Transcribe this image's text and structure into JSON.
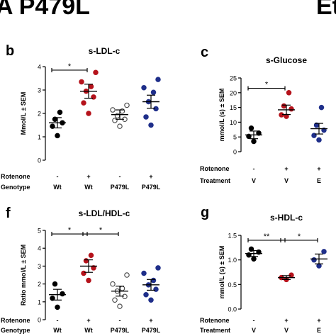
{
  "banner": {
    "left": "A P479L",
    "right": "Et"
  },
  "chart_data": [
    {
      "panel": "b",
      "type": "scatter",
      "title": "s-LDL-c",
      "ylabel": "Mmol/L ± SEM",
      "ylim": [
        0,
        4
      ],
      "yticks": [
        0,
        1,
        2,
        3,
        4
      ],
      "row_labels": [
        "Rotenone",
        "Genotype"
      ],
      "categories": [
        {
          "rotenone": "-",
          "group": "Wt",
          "color": "#000000",
          "fill": "#000000",
          "mean": 1.6,
          "sem": 0.22,
          "points": [
            1.05,
            1.45,
            1.6,
            1.75,
            2.05
          ]
        },
        {
          "rotenone": "+",
          "group": "Wt",
          "color": "#b5121b",
          "fill": "#b5121b",
          "mean": 2.95,
          "sem": 0.3,
          "points": [
            2.0,
            2.45,
            2.7,
            2.95,
            3.15,
            3.35,
            3.75
          ]
        },
        {
          "rotenone": "-",
          "group": "P479L",
          "color": "#444444",
          "fill": "#ffffff",
          "mean": 1.95,
          "sem": 0.2,
          "points": [
            1.45,
            1.7,
            1.75,
            1.9,
            2.1,
            2.15,
            2.35
          ]
        },
        {
          "rotenone": "+",
          "group": "P479L",
          "color": "#1f2f8a",
          "fill": "#1f2f8a",
          "mean": 2.5,
          "sem": 0.28,
          "points": [
            1.5,
            1.85,
            2.2,
            2.5,
            2.9,
            3.1,
            3.45
          ]
        }
      ],
      "significance": [
        {
          "from": 0,
          "to": 1,
          "label": "*",
          "y": 3.85
        }
      ]
    },
    {
      "panel": "c",
      "type": "scatter",
      "title": "s-Glucose",
      "ylabel": "mmol/L (s) ± SEM",
      "ylim": [
        0,
        25
      ],
      "yticks": [
        0,
        5,
        10,
        15,
        20,
        25
      ],
      "row_labels": [
        "Rotenone",
        "Treatment"
      ],
      "categories": [
        {
          "rotenone": "-",
          "group": "V",
          "color": "#000000",
          "fill": "#000000",
          "mean": 5.7,
          "sem": 1.3,
          "points": [
            3.5,
            5.2,
            6.3,
            8.0
          ]
        },
        {
          "rotenone": "+",
          "group": "V",
          "color": "#b5121b",
          "fill": "#b5121b",
          "mean": 14.2,
          "sem": 1.6,
          "points": [
            12.0,
            12.5,
            14.5,
            15.5,
            20.0
          ]
        },
        {
          "rotenone": "+",
          "group": "E",
          "color": "#1f2f8a",
          "fill": "#1f2f8a",
          "mean": 7.8,
          "sem": 1.8,
          "points": [
            4.0,
            5.5,
            7.3,
            9.0,
            15.0
          ]
        }
      ],
      "significance": [
        {
          "from": 0,
          "to": 1,
          "label": "*",
          "y": 21.5
        }
      ]
    },
    {
      "panel": "f",
      "type": "scatter",
      "title": "s-LDL/HDL-c",
      "ylabel": "Ratio mmol/L ± SEM",
      "ylim": [
        0,
        5
      ],
      "yticks": [
        0,
        1,
        2,
        3,
        4,
        5
      ],
      "row_labels": [
        "Rotenone",
        "Genotype"
      ],
      "categories": [
        {
          "rotenone": "-",
          "group": "Wt",
          "color": "#000000",
          "fill": "#000000",
          "mean": 1.4,
          "sem": 0.3,
          "points": [
            0.7,
            1.2,
            1.45,
            2.0
          ]
        },
        {
          "rotenone": "+",
          "group": "Wt",
          "color": "#b5121b",
          "fill": "#b5121b",
          "mean": 3.0,
          "sem": 0.35,
          "points": [
            2.2,
            2.6,
            2.9,
            3.3,
            3.6
          ]
        },
        {
          "rotenone": "-",
          "group": "P479L",
          "color": "#444444",
          "fill": "#ffffff",
          "mean": 1.6,
          "sem": 0.28,
          "points": [
            0.75,
            1.1,
            1.3,
            1.6,
            1.75,
            2.0,
            2.5
          ]
        },
        {
          "rotenone": "+",
          "group": "P479L",
          "color": "#1f2f8a",
          "fill": "#1f2f8a",
          "mean": 1.95,
          "sem": 0.3,
          "points": [
            1.1,
            1.4,
            1.7,
            1.95,
            2.2,
            2.6,
            2.9
          ]
        }
      ],
      "significance": [
        {
          "from": 0,
          "to": 1,
          "label": "*",
          "y": 4.8
        },
        {
          "from": 1,
          "to": 2,
          "label": "*",
          "y": 4.8
        }
      ]
    },
    {
      "panel": "g",
      "type": "scatter",
      "title": "s-HDL-c",
      "ylabel": "mmol/L (s) ± SEM",
      "ylim": [
        0.0,
        1.5
      ],
      "yticks": [
        0.0,
        0.5,
        1.0,
        1.5
      ],
      "yticklabels": [
        "0.0",
        "0.5",
        "1.0",
        "1.5"
      ],
      "row_labels": [
        "Rotenone",
        "Treatment"
      ],
      "categories": [
        {
          "rotenone": "-",
          "group": "V",
          "color": "#000000",
          "fill": "#000000",
          "mean": 1.13,
          "sem": 0.06,
          "points": [
            1.02,
            1.1,
            1.16,
            1.22
          ]
        },
        {
          "rotenone": "+",
          "group": "V",
          "color": "#b5121b",
          "fill": "#b5121b",
          "mean": 0.64,
          "sem": 0.04,
          "points": [
            0.6,
            0.64,
            0.69
          ]
        },
        {
          "rotenone": "+",
          "group": "E",
          "color": "#1f2f8a",
          "fill": "#1f2f8a",
          "mean": 1.02,
          "sem": 0.1,
          "points": [
            0.88,
            1.0,
            1.17
          ]
        }
      ],
      "significance": [
        {
          "from": 0,
          "to": 1,
          "label": "**",
          "y": 1.4
        },
        {
          "from": 1,
          "to": 2,
          "label": "*",
          "y": 1.4
        }
      ]
    }
  ]
}
